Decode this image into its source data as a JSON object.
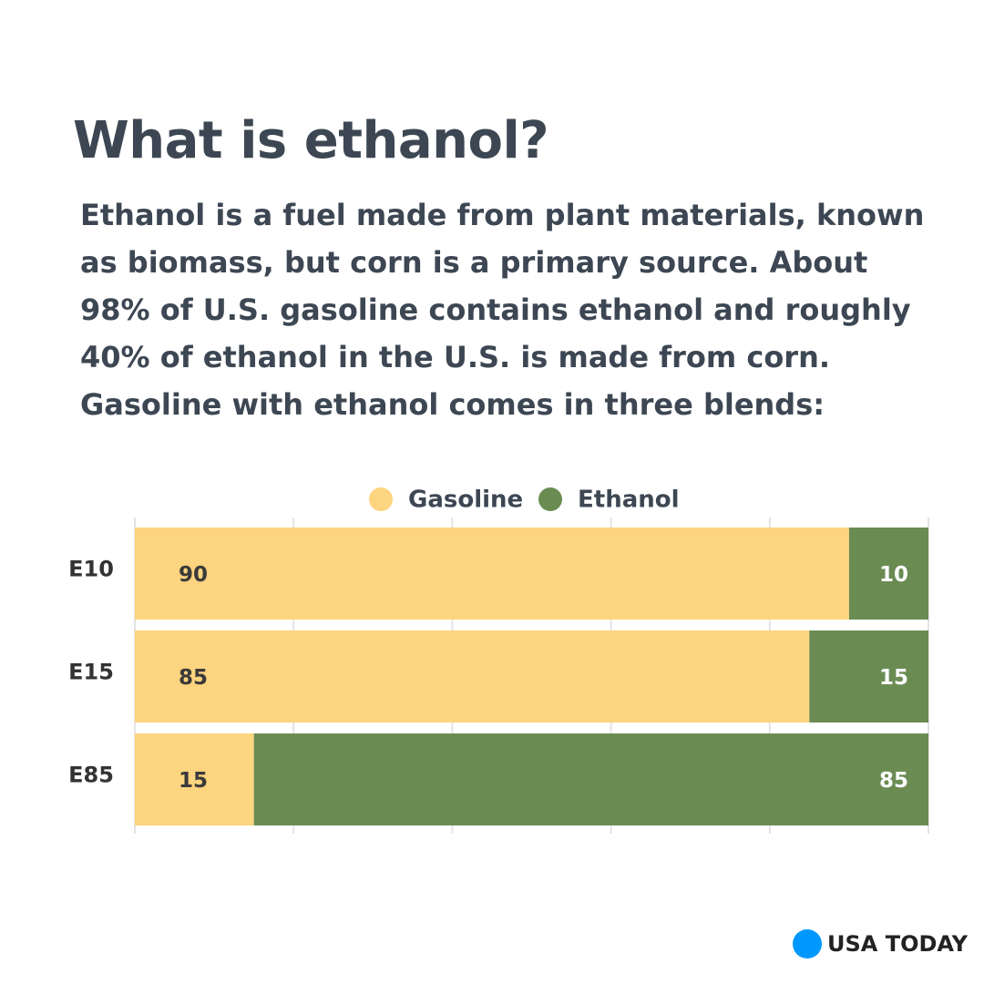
{
  "chart_data": {
    "type": "bar",
    "orientation": "horizontal",
    "stacked": true,
    "title": "What is ethanol?",
    "subtitle": "Ethanol is a fuel made from plant materials, known as biomass, but corn is a primary source. About 98% of U.S. gasoline contains ethanol and roughly 40% of ethanol in the U.S. is made from corn. Gasoline with ethanol comes in three blends:",
    "categories": [
      "E10",
      "E15",
      "E85"
    ],
    "series": [
      {
        "name": "Gasoline",
        "color": "#fdd47f",
        "label_color": "#3a3a3a",
        "values": [
          90,
          85,
          15
        ]
      },
      {
        "name": "Ethanol",
        "color": "#6a8c53",
        "label_color": "#ffffff",
        "values": [
          10,
          15,
          85
        ]
      }
    ],
    "xlim": [
      0,
      100
    ],
    "xticks": [
      0,
      20,
      40,
      60,
      80,
      100
    ],
    "grid": true,
    "legend": "top",
    "source": "USA TODAY"
  }
}
